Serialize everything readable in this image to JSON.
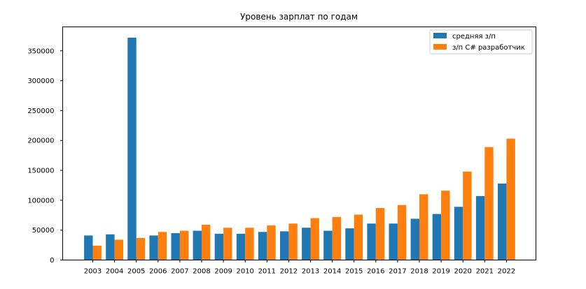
{
  "chart_data": {
    "type": "bar",
    "title": "Уровень зарплат по годам",
    "xlabel": "",
    "ylabel": "",
    "categories": [
      "2003",
      "2004",
      "2005",
      "2006",
      "2007",
      "2008",
      "2009",
      "2010",
      "2011",
      "2012",
      "2013",
      "2014",
      "2015",
      "2016",
      "2017",
      "2018",
      "2019",
      "2020",
      "2021",
      "2022"
    ],
    "series": [
      {
        "name": "средняя з/п",
        "color": "#1f77b4",
        "values": [
          41000,
          43000,
          372000,
          41000,
          45000,
          49000,
          44000,
          44000,
          47000,
          48000,
          54000,
          49000,
          53000,
          61000,
          61000,
          69000,
          77000,
          89000,
          107000,
          128000
        ]
      },
      {
        "name": "з/п C# разработчик",
        "color": "#ff7f0e",
        "values": [
          24000,
          34000,
          37000,
          47000,
          49000,
          59000,
          54000,
          54000,
          58000,
          61000,
          70000,
          72000,
          76000,
          87000,
          92000,
          110000,
          116000,
          148000,
          189000,
          203000
        ]
      }
    ],
    "ylim": [
      0,
      390000
    ],
    "yticks": [
      0,
      50000,
      100000,
      150000,
      200000,
      250000,
      300000,
      350000
    ],
    "grid": false,
    "legend_position": "top-right"
  }
}
